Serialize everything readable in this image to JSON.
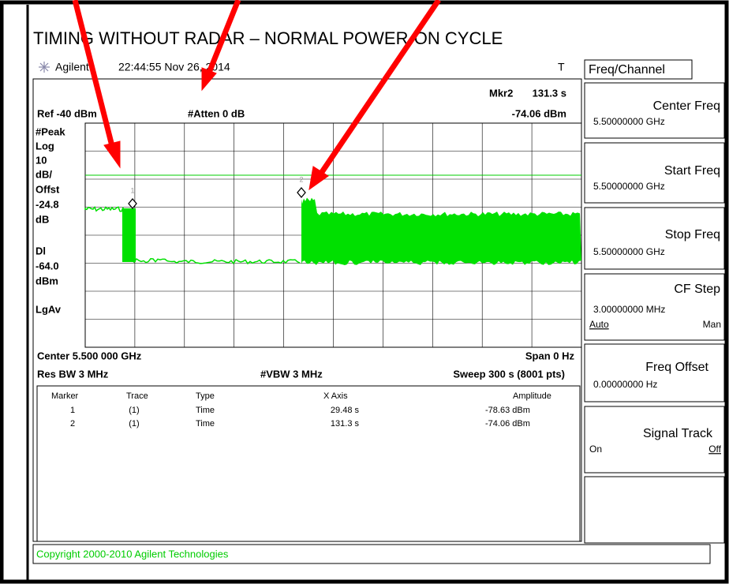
{
  "title": "TIMING WITHOUT RADAR – NORMAL POWER-ON CYCLE",
  "header": {
    "brand": "Agilent",
    "timestamp": "22:44:55 Nov 26, 2014",
    "flag": "T"
  },
  "marker_readout": {
    "label": "Mkr2",
    "x": "131.3 s",
    "amplitude": "-74.06 dBm"
  },
  "settings": {
    "ref": "Ref -40 dBm",
    "atten": "#Atten 0 dB",
    "center": "Center 5.500 000 GHz",
    "span": "Span 0 Hz",
    "rbw": "Res BW 3 MHz",
    "vbw": "#VBW 3 MHz",
    "sweep": "Sweep 300 s (8001 pts)"
  },
  "left_labels": [
    "#Peak",
    "Log",
    "10",
    "dB/",
    "Offst",
    "-24.8",
    "dB",
    "Dl",
    "-64.0",
    "dBm",
    "LgAv"
  ],
  "trace_markers": [
    "1",
    "2"
  ],
  "marker_table": {
    "headers": [
      "Marker",
      "Trace",
      "Type",
      "X Axis",
      "Amplitude"
    ],
    "rows": [
      [
        "1",
        "(1)",
        "Time",
        "29.48 s",
        "-78.63 dBm"
      ],
      [
        "2",
        "(1)",
        "Time",
        "131.3 s",
        "-74.06 dBm"
      ]
    ]
  },
  "softkeys": {
    "menu": "Freq/Channel",
    "keys": [
      {
        "label": "Center Freq",
        "value": "5.50000000 GHz"
      },
      {
        "label": "Start Freq",
        "value": "5.50000000 GHz"
      },
      {
        "label": "Stop Freq",
        "value": "5.50000000 GHz"
      },
      {
        "label": "CF Step",
        "value": "3.00000000 MHz",
        "options": [
          "Auto",
          "Man"
        ]
      },
      {
        "label": "Freq Offset",
        "value": "0.00000000 Hz"
      },
      {
        "label": "Signal Track",
        "options": [
          "On",
          "Off"
        ]
      }
    ]
  },
  "copyright": "Copyright 2000-2010 Agilent Technologies"
}
